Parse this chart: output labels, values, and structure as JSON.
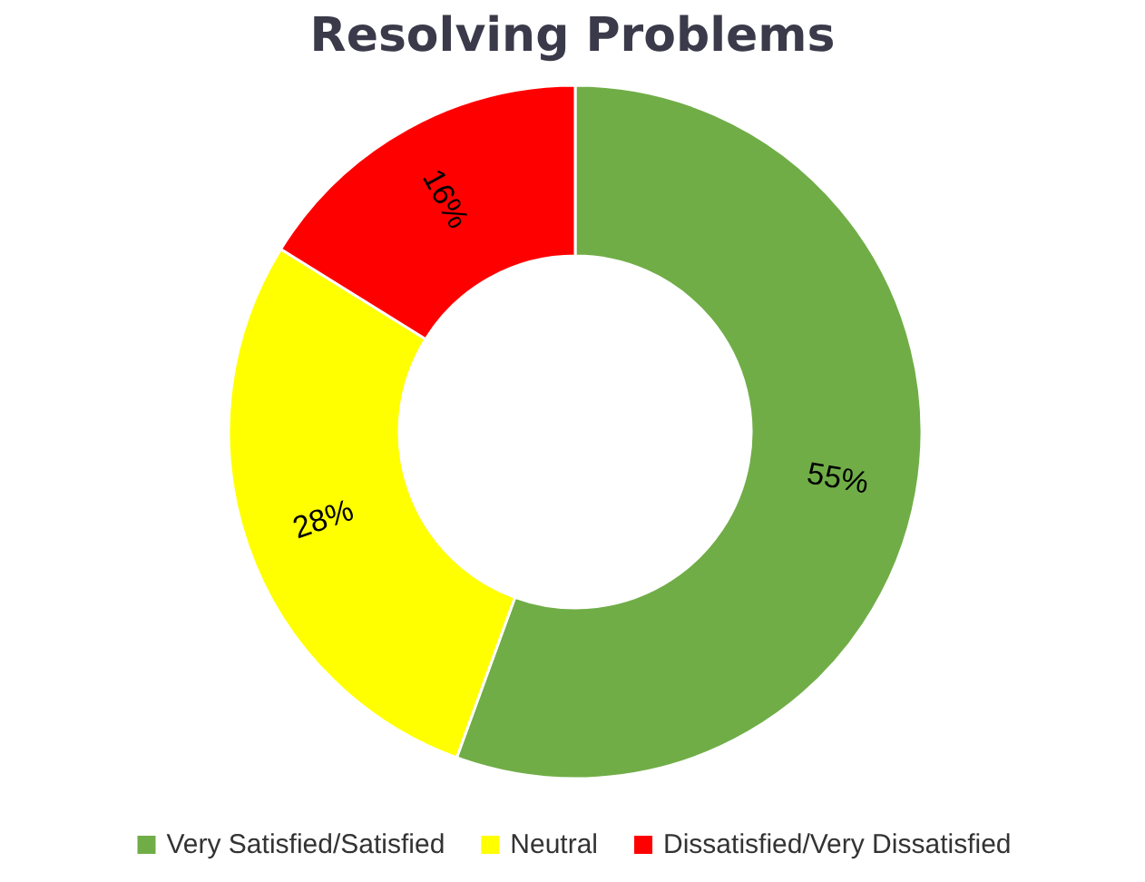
{
  "chart_data": {
    "type": "donut",
    "title": "Resolving Problems",
    "categories": [
      "Very Satisfied/Satisfied",
      "Neutral",
      "Dissatisfied/Very Dissatisfied"
    ],
    "values": [
      55,
      28,
      16
    ],
    "colors": [
      "#70ad47",
      "#ffff00",
      "#ff0000"
    ],
    "value_labels": [
      "55%",
      "28%",
      "16%"
    ],
    "legend": "bottom"
  }
}
